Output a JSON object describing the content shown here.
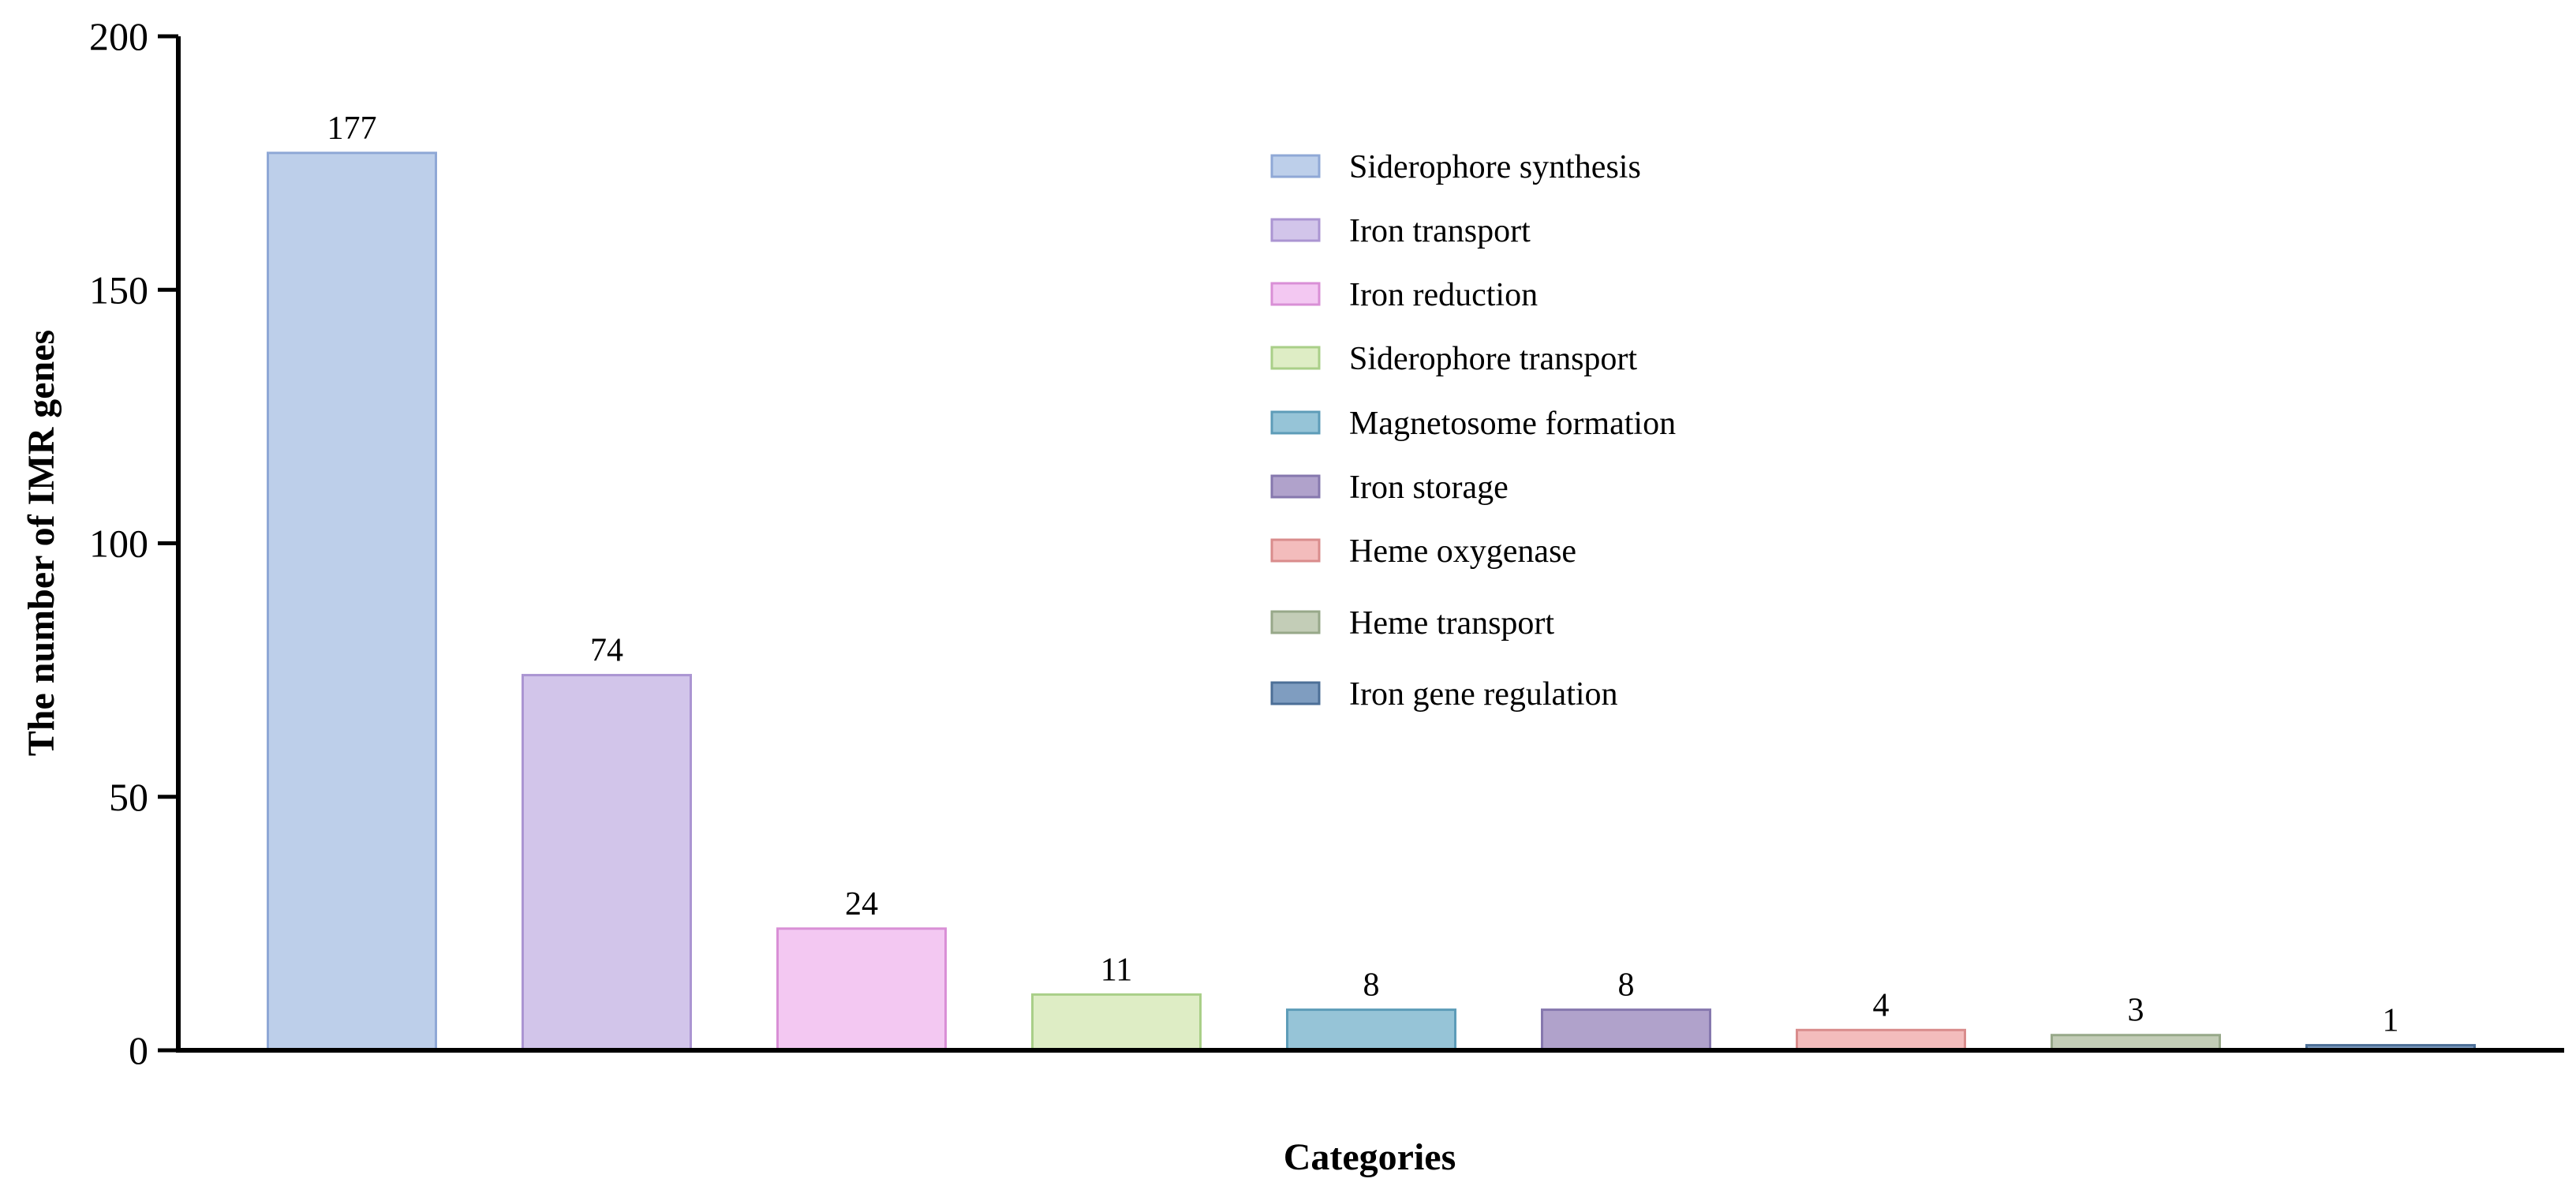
{
  "chart_data": {
    "type": "bar",
    "title": "",
    "xlabel": "Categories",
    "ylabel": "The number of IMR genes",
    "ylim": [
      0,
      200
    ],
    "yticks": [
      0,
      50,
      100,
      150,
      200
    ],
    "legend_position": "top-center",
    "grid": false,
    "categories": [
      "Siderophore synthesis",
      "Iron transport",
      "Iron reduction",
      "Siderophore transport",
      "Magnetosome formation",
      "Iron storage",
      "Heme oxygenase",
      "Heme transport",
      "Iron gene regulation"
    ],
    "values": [
      177,
      74,
      24,
      11,
      8,
      8,
      4,
      3,
      1
    ],
    "data_labels": [
      "177",
      "74",
      "24",
      "11",
      "8",
      "8",
      "4",
      "3",
      "1"
    ],
    "colors": [
      "#bdcfea",
      "#d2c5ea",
      "#f3c8f2",
      "#deedc5",
      "#96c4d7",
      "#b0a2cb",
      "#f3bcbc",
      "#c3cdb7",
      "#7f9dc0"
    ],
    "edge_colors": [
      "#8fa8d6",
      "#ab95d2",
      "#d98fd6",
      "#a9cf88",
      "#5d9cb8",
      "#8678ae",
      "#d98c8c",
      "#97a889",
      "#4c6f97"
    ]
  }
}
